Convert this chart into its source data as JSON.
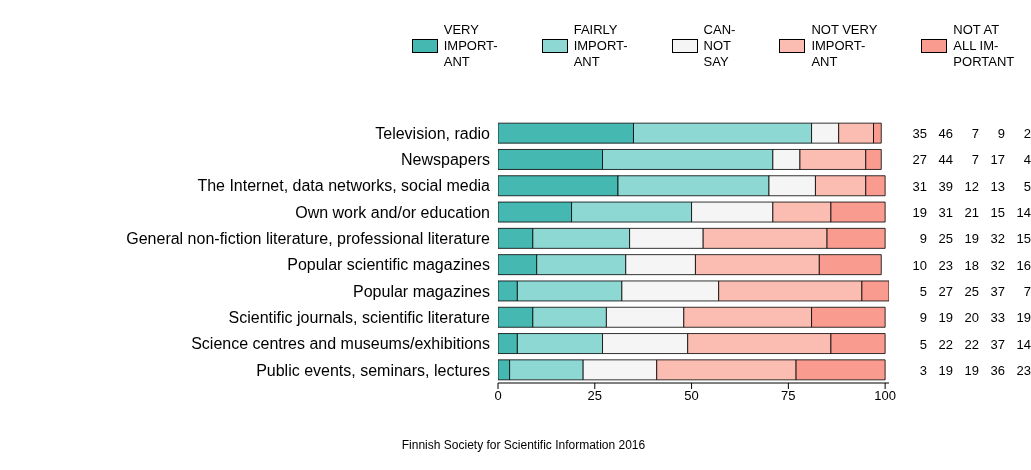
{
  "chart_data": {
    "type": "bar",
    "orientation": "horizontal",
    "stacked": true,
    "data_labels": true,
    "legend": "top",
    "grid": false,
    "categories": [
      "Television, radio",
      "Newspapers",
      "The Internet, data networks, social media",
      "Own work and/or education",
      "General non-fiction literature, professional literature",
      "Popular scientific magazines",
      "Popular magazines",
      "Scientific journals, scientific literature",
      "Science centres and museums/exhibitions",
      "Public events, seminars, lectures"
    ],
    "series": [
      {
        "name": "VERY\nIMPORT-\nANT",
        "color": "#45b8b1",
        "values": [
          35,
          27,
          31,
          19,
          9,
          10,
          5,
          9,
          5,
          3
        ]
      },
      {
        "name": "FAIRLY\nIMPORT-\nANT",
        "color": "#8dd8d3",
        "values": [
          46,
          44,
          39,
          31,
          25,
          23,
          27,
          19,
          22,
          19
        ]
      },
      {
        "name": "CAN-\nNOT\nSAY",
        "color": "#f5f5f5",
        "values": [
          7,
          7,
          12,
          21,
          19,
          18,
          25,
          20,
          22,
          19
        ]
      },
      {
        "name": "NOT VERY\nIMPORT-\nANT",
        "color": "#fbbdb2",
        "values": [
          9,
          17,
          13,
          15,
          32,
          32,
          37,
          33,
          37,
          36
        ]
      },
      {
        "name": "NOT AT\nALL IM-\nPORTANT",
        "color": "#f99b8f",
        "values": [
          2,
          4,
          5,
          14,
          15,
          16,
          7,
          19,
          14,
          23
        ]
      }
    ],
    "xlim": [
      0,
      101
    ],
    "xticks": [
      0,
      25,
      50,
      75,
      100
    ],
    "annotations": [
      "Finnish Society for Scientific Information 2016"
    ]
  }
}
